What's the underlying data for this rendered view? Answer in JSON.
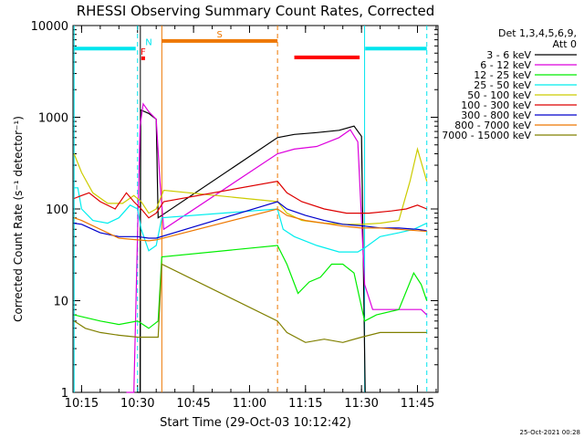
{
  "chart_data": {
    "type": "line",
    "title": "RHESSI Observing Summary Count Rates, Corrected",
    "xlabel": "Start Time (29-Oct-03 10:12:42)",
    "ylabel": "Corrected Count Rate (s⁻¹ detector⁻¹)",
    "yscale": "log",
    "ylim": [
      1,
      10000
    ],
    "xlim": [
      "10:12:42",
      "11:50:30"
    ],
    "x_ticks": [
      "10:15",
      "10:30",
      "10:45",
      "11:00",
      "11:15",
      "11:30",
      "11:45"
    ],
    "y_ticks": [
      "1",
      "10",
      "100",
      "1000",
      "10000"
    ],
    "legend_header": [
      "Det 1,3,4,5,6,9,",
      "Att 0"
    ],
    "legend_placement": "right",
    "footer_date": "25-Oct-2021 00:28",
    "series": [
      {
        "name": "3 - 6 keV",
        "color": "#000000",
        "points": [
          [
            "10:30:00",
            1
          ],
          [
            "10:30:40",
            1
          ],
          [
            "10:30:50",
            1200
          ],
          [
            "10:33:00",
            1100
          ],
          [
            "10:35:00",
            950
          ],
          [
            "10:35:30",
            80
          ],
          [
            "11:07:30",
            600
          ],
          [
            "11:12:00",
            650
          ],
          [
            "11:18:00",
            680
          ],
          [
            "11:24:00",
            720
          ],
          [
            "11:28:00",
            800
          ],
          [
            "11:30:00",
            620
          ],
          [
            "11:31:00",
            0
          ]
        ]
      },
      {
        "name": "6 - 12 keV",
        "color": "#dd00dd",
        "points": [
          [
            "10:27:00",
            1
          ],
          [
            "10:28:00",
            1
          ],
          [
            "10:29:00",
            1
          ],
          [
            "10:30:40",
            800
          ],
          [
            "10:31:30",
            1400
          ],
          [
            "10:33:00",
            1150
          ],
          [
            "10:35:00",
            950
          ],
          [
            "10:36:00",
            200
          ],
          [
            "10:37:00",
            60
          ],
          [
            "11:07:30",
            400
          ],
          [
            "11:12:00",
            450
          ],
          [
            "11:18:00",
            480
          ],
          [
            "11:24:00",
            600
          ],
          [
            "11:27:00",
            730
          ],
          [
            "11:29:00",
            540
          ],
          [
            "11:30:50",
            15
          ],
          [
            "11:33:00",
            8
          ],
          [
            "11:46:00",
            8
          ],
          [
            "11:47:30",
            7
          ]
        ]
      },
      {
        "name": "12 - 25 keV",
        "color": "#00ee00",
        "points": [
          [
            "10:13:00",
            7
          ],
          [
            "10:20:00",
            6
          ],
          [
            "10:25:00",
            5.5
          ],
          [
            "10:30:00",
            6
          ],
          [
            "10:33:00",
            5
          ],
          [
            "10:35:30",
            6
          ],
          [
            "10:36:30",
            30
          ],
          [
            "11:07:30",
            40
          ],
          [
            "11:10:00",
            25
          ],
          [
            "11:13:00",
            12
          ],
          [
            "11:16:00",
            16
          ],
          [
            "11:19:00",
            18
          ],
          [
            "11:22:00",
            25
          ],
          [
            "11:25:00",
            25
          ],
          [
            "11:28:00",
            20
          ],
          [
            "11:30:50",
            6
          ],
          [
            "11:34:00",
            7
          ],
          [
            "11:40:00",
            8
          ],
          [
            "11:44:00",
            20
          ],
          [
            "11:46:00",
            15
          ],
          [
            "11:47:30",
            10
          ]
        ]
      },
      {
        "name": "25 - 50 keV",
        "color": "#00eeee",
        "points": [
          [
            "10:13:00",
            170
          ],
          [
            "10:14:00",
            170
          ],
          [
            "10:15:00",
            100
          ],
          [
            "10:18:00",
            75
          ],
          [
            "10:22:00",
            70
          ],
          [
            "10:25:00",
            80
          ],
          [
            "10:28:00",
            110
          ],
          [
            "10:30:00",
            100
          ],
          [
            "10:31:00",
            60
          ],
          [
            "10:33:00",
            35
          ],
          [
            "10:35:00",
            40
          ],
          [
            "10:36:30",
            80
          ],
          [
            "11:07:30",
            100
          ],
          [
            "11:09:00",
            60
          ],
          [
            "11:12:00",
            50
          ],
          [
            "11:18:00",
            40
          ],
          [
            "11:24:00",
            34
          ],
          [
            "11:29:00",
            34
          ],
          [
            "11:31:00",
            38
          ],
          [
            "11:35:00",
            50
          ],
          [
            "11:40:00",
            55
          ],
          [
            "11:44:00",
            60
          ],
          [
            "11:47:30",
            70
          ]
        ]
      },
      {
        "name": "50 - 100 keV",
        "color": "#cccc00",
        "points": [
          [
            "10:13:00",
            400
          ],
          [
            "10:15:00",
            250
          ],
          [
            "10:18:00",
            150
          ],
          [
            "10:22:00",
            115
          ],
          [
            "10:26:00",
            115
          ],
          [
            "10:29:00",
            140
          ],
          [
            "10:31:00",
            120
          ],
          [
            "10:33:00",
            90
          ],
          [
            "10:35:00",
            100
          ],
          [
            "10:37:00",
            160
          ],
          [
            "11:07:30",
            120
          ],
          [
            "11:10:00",
            90
          ],
          [
            "11:14:00",
            75
          ],
          [
            "11:20:00",
            70
          ],
          [
            "11:26:00",
            68
          ],
          [
            "11:30:00",
            68
          ],
          [
            "11:35:00",
            70
          ],
          [
            "11:40:00",
            75
          ],
          [
            "11:43:00",
            200
          ],
          [
            "11:45:00",
            450
          ],
          [
            "11:47:30",
            200
          ]
        ]
      },
      {
        "name": "100 - 300 keV",
        "color": "#dd0000",
        "points": [
          [
            "10:13:00",
            130
          ],
          [
            "10:15:00",
            140
          ],
          [
            "10:17:00",
            150
          ],
          [
            "10:20:00",
            120
          ],
          [
            "10:24:00",
            100
          ],
          [
            "10:27:00",
            150
          ],
          [
            "10:29:00",
            120
          ],
          [
            "10:31:00",
            100
          ],
          [
            "10:33:00",
            80
          ],
          [
            "10:35:00",
            90
          ],
          [
            "10:37:00",
            120
          ],
          [
            "11:07:30",
            200
          ],
          [
            "11:10:00",
            150
          ],
          [
            "11:14:00",
            120
          ],
          [
            "11:20:00",
            100
          ],
          [
            "11:26:00",
            90
          ],
          [
            "11:32:00",
            90
          ],
          [
            "11:38:00",
            95
          ],
          [
            "11:42:00",
            100
          ],
          [
            "11:45:00",
            110
          ],
          [
            "11:47:30",
            100
          ]
        ]
      },
      {
        "name": "300 - 800 keV",
        "color": "#0000cc",
        "points": [
          [
            "10:13:00",
            70
          ],
          [
            "10:15:00",
            68
          ],
          [
            "10:20:00",
            55
          ],
          [
            "10:25:00",
            50
          ],
          [
            "10:30:00",
            50
          ],
          [
            "10:33:00",
            48
          ],
          [
            "10:35:00",
            48
          ],
          [
            "11:07:30",
            120
          ],
          [
            "11:10:00",
            100
          ],
          [
            "11:15:00",
            85
          ],
          [
            "11:20:00",
            75
          ],
          [
            "11:25:00",
            68
          ],
          [
            "11:31:00",
            65
          ],
          [
            "11:35:00",
            62
          ],
          [
            "11:40:00",
            62
          ],
          [
            "11:45:00",
            60
          ],
          [
            "11:47:30",
            58
          ]
        ]
      },
      {
        "name": "800 - 7000 keV",
        "color": "#ee7700",
        "points": [
          [
            "10:13:00",
            80
          ],
          [
            "10:15:00",
            75
          ],
          [
            "10:20:00",
            60
          ],
          [
            "10:25:00",
            48
          ],
          [
            "10:30:00",
            46
          ],
          [
            "10:33:00",
            45
          ],
          [
            "10:35:00",
            46
          ],
          [
            "11:07:30",
            100
          ],
          [
            "11:10:00",
            85
          ],
          [
            "11:15:00",
            75
          ],
          [
            "11:20:00",
            70
          ],
          [
            "11:25:00",
            65
          ],
          [
            "11:30:00",
            62
          ],
          [
            "11:35:00",
            62
          ],
          [
            "11:40:00",
            60
          ],
          [
            "11:45:00",
            58
          ],
          [
            "11:47:30",
            57
          ]
        ]
      },
      {
        "name": "7000 - 15000 keV",
        "color": "#808000",
        "points": [
          [
            "10:13:00",
            6
          ],
          [
            "10:16:00",
            5
          ],
          [
            "10:20:00",
            4.5
          ],
          [
            "10:25:00",
            4.2
          ],
          [
            "10:30:00",
            4
          ],
          [
            "10:33:00",
            4
          ],
          [
            "10:35:30",
            4
          ],
          [
            "10:36:30",
            25
          ],
          [
            "11:07:30",
            6
          ],
          [
            "11:10:00",
            4.5
          ],
          [
            "11:15:00",
            3.5
          ],
          [
            "11:20:00",
            3.8
          ],
          [
            "11:25:00",
            3.5
          ],
          [
            "11:30:00",
            4
          ],
          [
            "11:35:00",
            4.5
          ],
          [
            "11:40:00",
            4.5
          ],
          [
            "11:45:00",
            4.5
          ],
          [
            "11:47:30",
            4.5
          ]
        ]
      }
    ],
    "flag_bars": [
      {
        "label": "",
        "color": "#00e5ee",
        "start": "10:13:00",
        "end": "10:29:30",
        "y": 5600
      },
      {
        "label": "F",
        "color": "#ff0000",
        "start": "10:31:00",
        "end": "10:32:00",
        "y": 4400
      },
      {
        "label": "N",
        "color": "#00e5ee",
        "start": "10:33:00",
        "end": "10:33:00",
        "y": 5600
      },
      {
        "label": "S",
        "color": "#ee7700",
        "start": "10:36:30",
        "end": "11:07:30",
        "y": 6800
      },
      {
        "label": "",
        "color": "#ff0000",
        "start": "11:12:00",
        "end": "11:29:30",
        "y": 4500
      },
      {
        "label": "",
        "color": "#00e5ee",
        "start": "11:31:00",
        "end": "11:47:30",
        "y": 5600
      }
    ],
    "vertical_lines": [
      {
        "color": "#00e5ee",
        "time": "10:13:00",
        "style": "solid"
      },
      {
        "color": "#00e5ee",
        "time": "10:30:00",
        "style": "dashed"
      },
      {
        "color": "#000000",
        "time": "10:30:45",
        "style": "solid"
      },
      {
        "color": "#ee7700",
        "time": "10:36:30",
        "style": "solid"
      },
      {
        "color": "#ee7700",
        "time": "11:07:30",
        "style": "dashed"
      },
      {
        "color": "#00e5ee",
        "time": "11:30:50",
        "style": "solid"
      },
      {
        "color": "#00e5ee",
        "time": "11:47:30",
        "style": "dashed"
      }
    ]
  }
}
